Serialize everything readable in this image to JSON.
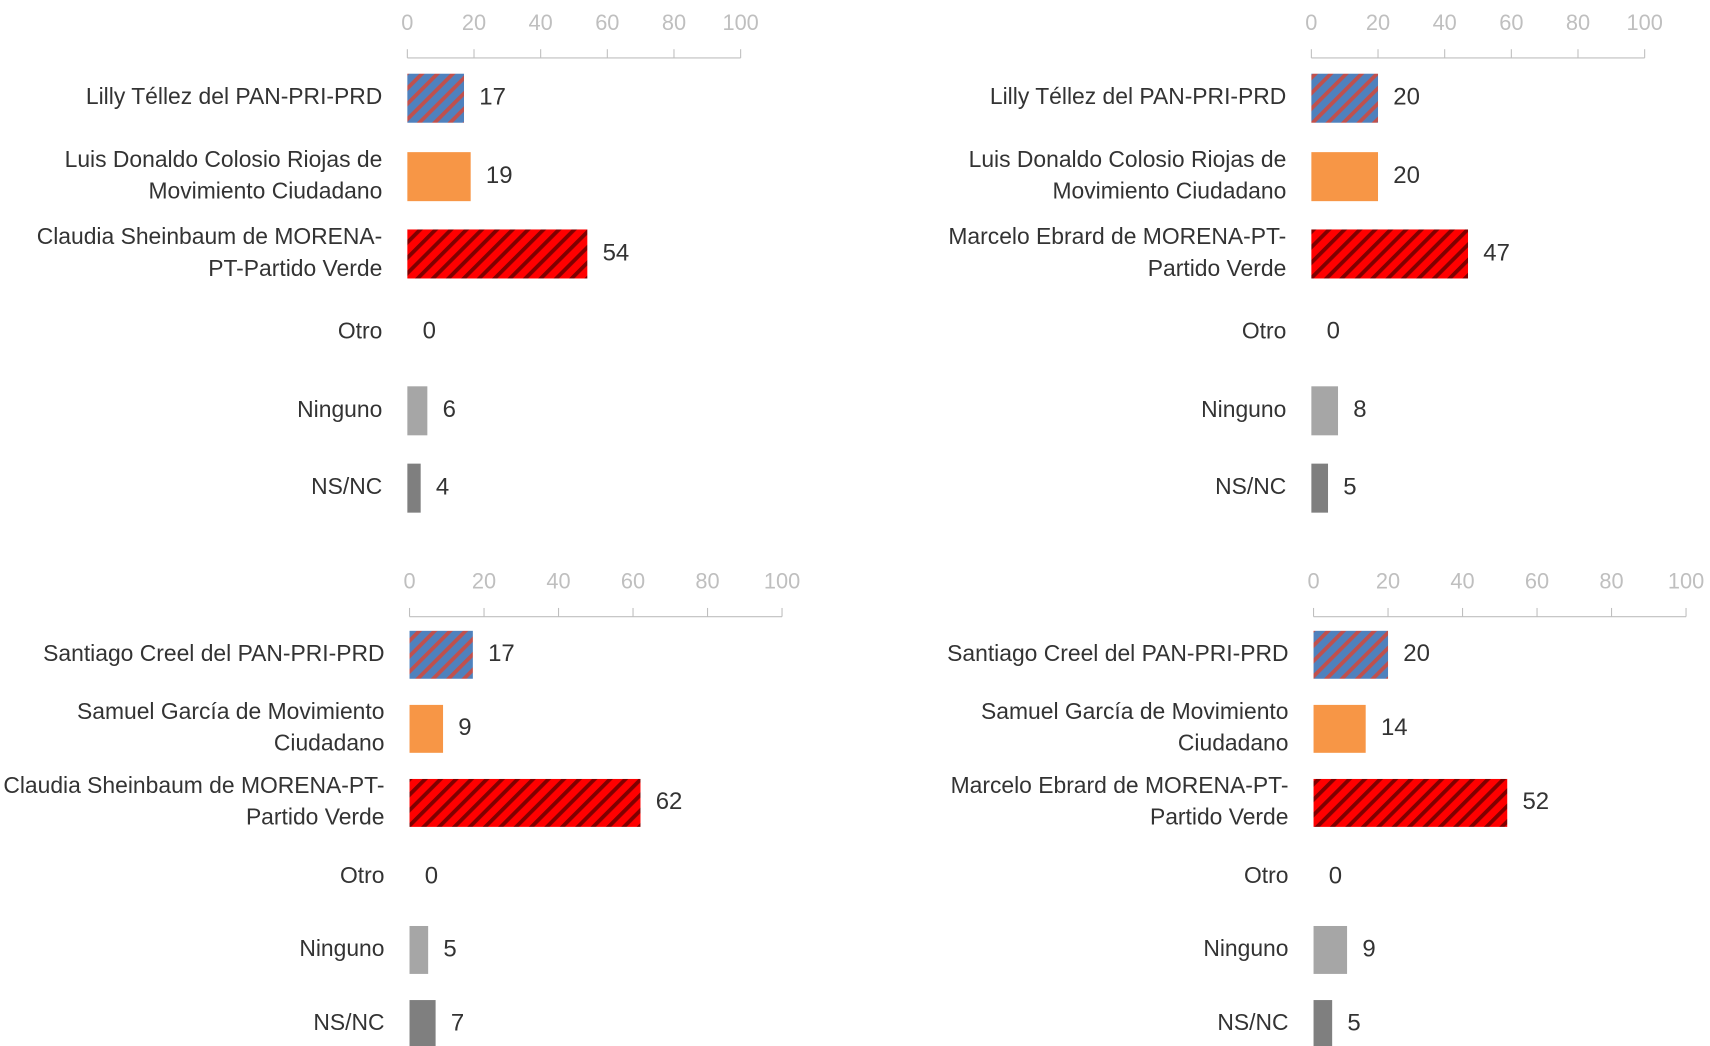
{
  "chart_data": [
    {
      "type": "bar",
      "orientation": "horizontal",
      "categories": [
        "Lilly Téllez del PAN-PRI-PRD",
        "Luis Donaldo Colosio Riojas de\nMovimiento Ciudadano",
        "Claudia Sheinbaum de MORENA-\nPT-Partido Verde",
        "Otro",
        "Ninguno",
        "NS/NC"
      ],
      "values": [
        17,
        19,
        54,
        0,
        6,
        4
      ],
      "colors": [
        "#4f81bd",
        "#f79646",
        "#ff0000",
        "#a6a6a6",
        "#a6a6a6",
        "#7f7f7f"
      ],
      "hatch": [
        "#c0504d",
        null,
        "#7f0000",
        null,
        null,
        null
      ],
      "xlim": [
        0,
        100
      ],
      "xticks": [
        0,
        20,
        40,
        60,
        80,
        100
      ]
    },
    {
      "type": "bar",
      "orientation": "horizontal",
      "categories": [
        "Lilly Téllez del PAN-PRI-PRD",
        "Luis Donaldo Colosio Riojas de\nMovimiento Ciudadano",
        "Marcelo Ebrard de MORENA-PT-\nPartido Verde",
        "Otro",
        "Ninguno",
        "NS/NC"
      ],
      "values": [
        20,
        20,
        47,
        0,
        8,
        5
      ],
      "colors": [
        "#4f81bd",
        "#f79646",
        "#ff0000",
        "#a6a6a6",
        "#a6a6a6",
        "#7f7f7f"
      ],
      "hatch": [
        "#c0504d",
        null,
        "#7f0000",
        null,
        null,
        null
      ],
      "xlim": [
        0,
        100
      ],
      "xticks": [
        0,
        20,
        40,
        60,
        80,
        100
      ]
    },
    {
      "type": "bar",
      "orientation": "horizontal",
      "categories": [
        "Santiago Creel del PAN-PRI-PRD",
        "Samuel García de Movimiento\nCiudadano",
        "Claudia Sheinbaum de MORENA-PT-\nPartido Verde",
        "Otro",
        "Ninguno",
        "NS/NC"
      ],
      "values": [
        17,
        9,
        62,
        0,
        5,
        7
      ],
      "colors": [
        "#4f81bd",
        "#f79646",
        "#ff0000",
        "#a6a6a6",
        "#a6a6a6",
        "#7f7f7f"
      ],
      "hatch": [
        "#c0504d",
        null,
        "#7f0000",
        null,
        null,
        null
      ],
      "xlim": [
        0,
        100
      ],
      "xticks": [
        0,
        20,
        40,
        60,
        80,
        100
      ]
    },
    {
      "type": "bar",
      "orientation": "horizontal",
      "categories": [
        "Santiago Creel del PAN-PRI-PRD",
        "Samuel García de Movimiento\nCiudadano",
        "Marcelo Ebrard de    MORENA-PT-\nPartido Verde",
        "Otro",
        "Ninguno",
        "NS/NC"
      ],
      "values": [
        20,
        14,
        52,
        0,
        9,
        5
      ],
      "colors": [
        "#4f81bd",
        "#f79646",
        "#ff0000",
        "#a6a6a6",
        "#a6a6a6",
        "#7f7f7f"
      ],
      "hatch": [
        "#c0504d",
        null,
        "#7f0000",
        null,
        null,
        null
      ],
      "xlim": [
        0,
        100
      ],
      "xticks": [
        0,
        20,
        40,
        60,
        80,
        100
      ]
    }
  ]
}
